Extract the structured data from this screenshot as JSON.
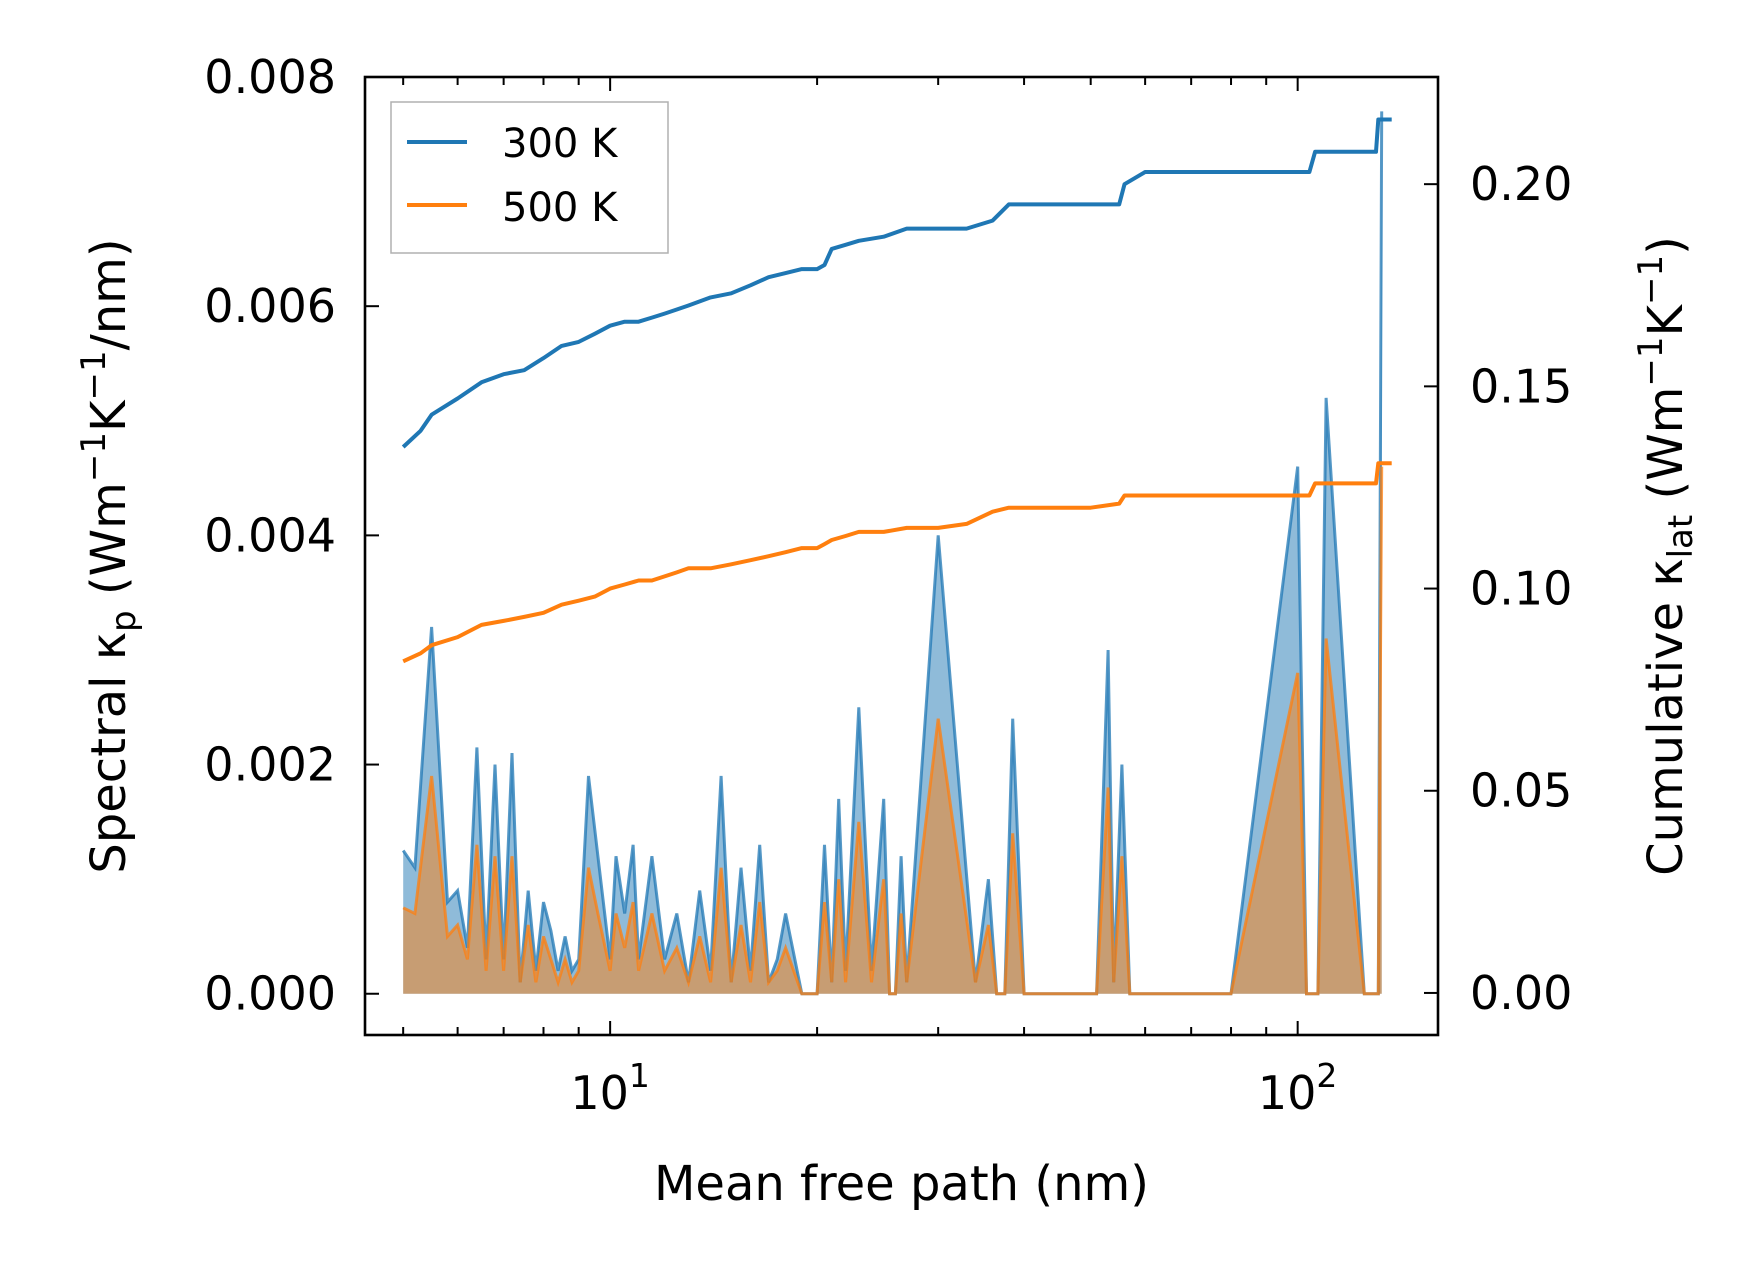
{
  "chart_data": {
    "type": "line",
    "x_scale": "log",
    "xlabel": "Mean free path (nm)",
    "ylabel_left_main": "Spectral κ",
    "ylabel_left_sub": "p",
    "ylabel_left_units_prefix": " (Wm",
    "ylabel_left_units_exp1": "−1",
    "ylabel_left_units_mid": "K",
    "ylabel_left_units_exp2": "−1",
    "ylabel_left_units_suffix": "/nm)",
    "ylabel_right_main": "Cumulative κ",
    "ylabel_right_sub": "lat",
    "ylabel_right_units_prefix": " (Wm",
    "ylabel_right_units_exp1": "−1",
    "ylabel_right_units_mid": "K",
    "ylabel_right_units_exp2": "−1",
    "ylabel_right_units_suffix": ")",
    "xlim": [
      4.4,
      160
    ],
    "ylim_left": [
      -0.00036,
      0.008
    ],
    "ylim_right": [
      -0.0104,
      0.2265
    ],
    "x_ticks": [
      {
        "value": 10,
        "base": "10",
        "exp": "1"
      },
      {
        "value": 100,
        "base": "10",
        "exp": "2"
      }
    ],
    "y_ticks_left": [
      {
        "value": 0.0,
        "label": "0.000"
      },
      {
        "value": 0.002,
        "label": "0.002"
      },
      {
        "value": 0.004,
        "label": "0.004"
      },
      {
        "value": 0.006,
        "label": "0.006"
      },
      {
        "value": 0.008,
        "label": "0.008"
      }
    ],
    "y_ticks_right": [
      {
        "value": 0.0,
        "label": "0.00"
      },
      {
        "value": 0.05,
        "label": "0.05"
      },
      {
        "value": 0.1,
        "label": "0.10"
      },
      {
        "value": 0.15,
        "label": "0.15"
      },
      {
        "value": 0.2,
        "label": "0.20"
      }
    ],
    "legend_position": "top-left",
    "series": [
      {
        "name": "300 K",
        "color": "#1f77b4",
        "cumulative": {
          "x": [
            5.0,
            5.3,
            5.5,
            6.0,
            6.5,
            7.0,
            7.5,
            8.0,
            8.5,
            9.0,
            9.5,
            10.0,
            10.5,
            11.0,
            11.5,
            12.0,
            12.5,
            13.0,
            14.0,
            15.0,
            16.0,
            17.0,
            18.0,
            19.0,
            20.0,
            20.5,
            21.0,
            22.0,
            23.0,
            25.0,
            27.0,
            30.0,
            33.0,
            36.0,
            38.0,
            40.0,
            45.0,
            50.0,
            55.0,
            56.0,
            60.0,
            70.0,
            80.0,
            90.0,
            100.0,
            104.0,
            106.0,
            110.0,
            120.0,
            130.0,
            131.0,
            137.0
          ],
          "y": [
            0.135,
            0.139,
            0.143,
            0.147,
            0.151,
            0.153,
            0.154,
            0.157,
            0.16,
            0.161,
            0.163,
            0.165,
            0.166,
            0.166,
            0.167,
            0.168,
            0.169,
            0.17,
            0.172,
            0.173,
            0.175,
            0.177,
            0.178,
            0.179,
            0.179,
            0.18,
            0.184,
            0.185,
            0.186,
            0.187,
            0.189,
            0.189,
            0.189,
            0.191,
            0.195,
            0.195,
            0.195,
            0.195,
            0.195,
            0.2,
            0.203,
            0.203,
            0.203,
            0.203,
            0.203,
            0.203,
            0.208,
            0.208,
            0.208,
            0.208,
            0.216,
            0.216
          ]
        },
        "spectral": {
          "x": [
            5.0,
            5.2,
            5.5,
            5.8,
            6.0,
            6.2,
            6.4,
            6.6,
            6.8,
            7.0,
            7.2,
            7.4,
            7.6,
            7.8,
            8.0,
            8.2,
            8.4,
            8.6,
            8.8,
            9.0,
            9.3,
            9.6,
            10.0,
            10.2,
            10.5,
            10.8,
            11.0,
            11.5,
            12.0,
            12.5,
            13.0,
            13.5,
            14.0,
            14.5,
            15.0,
            15.5,
            16.0,
            16.5,
            17.0,
            17.5,
            18.0,
            19.0,
            20.0,
            20.5,
            21.0,
            21.5,
            22.0,
            23.0,
            24.0,
            25.0,
            25.5,
            26.0,
            26.5,
            27.0,
            30.0,
            34.0,
            35.5,
            36.5,
            37.5,
            38.5,
            40.0,
            45.0,
            51.0,
            53.0,
            54.0,
            55.5,
            57.0,
            60.0,
            80.0,
            100.0,
            103.0,
            105.0,
            107.0,
            110.0,
            125.0,
            129.0,
            131.0,
            132.5
          ],
          "y": [
            0.00125,
            0.0011,
            0.0032,
            0.0008,
            0.0009,
            0.0004,
            0.00215,
            0.0003,
            0.002,
            0.0003,
            0.0021,
            0.0001,
            0.0009,
            0.0002,
            0.0008,
            0.00055,
            0.0002,
            0.0005,
            0.0002,
            0.0003,
            0.0019,
            0.0012,
            0.0003,
            0.0012,
            0.0007,
            0.0013,
            0.0003,
            0.0012,
            0.0003,
            0.0007,
            0.0001,
            0.0009,
            0.0002,
            0.0019,
            0.0001,
            0.0011,
            0.0002,
            0.0013,
            0.0001,
            0.0003,
            0.0007,
            0.0,
            0.0,
            0.0013,
            0.0001,
            0.0017,
            0.0002,
            0.0025,
            0.0002,
            0.0017,
            0.0,
            0.0,
            0.0012,
            0.0001,
            0.004,
            0.0001,
            0.001,
            0.0,
            0.0,
            0.0024,
            0.0,
            0.0,
            0.0,
            0.003,
            0.0001,
            0.002,
            0.0,
            0.0,
            0.0,
            0.0046,
            0.0,
            0.0,
            0.0,
            0.0052,
            0.0,
            0.0,
            0.0,
            0.0077
          ]
        }
      },
      {
        "name": "500 K",
        "color": "#ff7f0e",
        "cumulative": {
          "x": [
            5.0,
            5.3,
            5.5,
            6.0,
            6.5,
            7.0,
            7.5,
            8.0,
            8.5,
            9.0,
            9.5,
            10.0,
            10.5,
            11.0,
            11.5,
            12.0,
            12.5,
            13.0,
            14.0,
            15.0,
            16.0,
            17.0,
            18.0,
            19.0,
            20.0,
            20.5,
            21.0,
            22.0,
            23.0,
            25.0,
            27.0,
            30.0,
            33.0,
            36.0,
            38.0,
            40.0,
            45.0,
            50.0,
            55.0,
            56.0,
            60.0,
            70.0,
            80.0,
            90.0,
            100.0,
            104.0,
            106.0,
            110.0,
            120.0,
            130.0,
            131.0,
            137.0
          ],
          "y": [
            0.082,
            0.084,
            0.086,
            0.088,
            0.091,
            0.092,
            0.093,
            0.094,
            0.096,
            0.097,
            0.098,
            0.1,
            0.101,
            0.102,
            0.102,
            0.103,
            0.104,
            0.105,
            0.105,
            0.106,
            0.107,
            0.108,
            0.109,
            0.11,
            0.11,
            0.111,
            0.112,
            0.113,
            0.114,
            0.114,
            0.115,
            0.115,
            0.116,
            0.119,
            0.12,
            0.12,
            0.12,
            0.12,
            0.121,
            0.123,
            0.123,
            0.123,
            0.123,
            0.123,
            0.123,
            0.123,
            0.126,
            0.126,
            0.126,
            0.126,
            0.131,
            0.131
          ]
        },
        "spectral": {
          "x": [
            5.0,
            5.2,
            5.5,
            5.8,
            6.0,
            6.2,
            6.4,
            6.6,
            6.8,
            7.0,
            7.2,
            7.4,
            7.6,
            7.8,
            8.0,
            8.2,
            8.4,
            8.6,
            8.8,
            9.0,
            9.3,
            9.6,
            10.0,
            10.2,
            10.5,
            10.8,
            11.0,
            11.5,
            12.0,
            12.5,
            13.0,
            13.5,
            14.0,
            14.5,
            15.0,
            15.5,
            16.0,
            16.5,
            17.0,
            17.5,
            18.0,
            19.0,
            20.0,
            20.5,
            21.0,
            21.5,
            22.0,
            23.0,
            24.0,
            25.0,
            25.5,
            26.0,
            26.5,
            27.0,
            30.0,
            34.0,
            35.5,
            36.5,
            37.5,
            38.5,
            40.0,
            45.0,
            51.0,
            53.0,
            54.0,
            55.5,
            57.0,
            60.0,
            80.0,
            100.0,
            103.0,
            105.0,
            107.0,
            110.0,
            125.0,
            129.0,
            131.0,
            132.5
          ],
          "y": [
            0.00075,
            0.0007,
            0.0019,
            0.0005,
            0.0006,
            0.0003,
            0.0013,
            0.0002,
            0.0012,
            0.0002,
            0.0012,
            0.0001,
            0.0006,
            0.0001,
            0.0005,
            0.0003,
            0.0001,
            0.0003,
            0.0001,
            0.0002,
            0.0011,
            0.0007,
            0.0002,
            0.0007,
            0.0004,
            0.0008,
            0.0002,
            0.0007,
            0.0002,
            0.0004,
            0.0001,
            0.0005,
            0.0001,
            0.0011,
            0.0001,
            0.0006,
            0.0001,
            0.0008,
            0.0001,
            0.0002,
            0.0004,
            0.0,
            0.0,
            0.0008,
            0.0001,
            0.001,
            0.0001,
            0.0015,
            0.0001,
            0.001,
            0.0,
            0.0,
            0.0007,
            0.0001,
            0.0024,
            0.0001,
            0.0006,
            0.0,
            0.0,
            0.0014,
            0.0,
            0.0,
            0.0,
            0.0018,
            0.0001,
            0.0012,
            0.0,
            0.0,
            0.0,
            0.0028,
            0.0,
            0.0,
            0.0,
            0.0031,
            0.0,
            0.0,
            0.0,
            0.0046
          ]
        }
      }
    ]
  }
}
